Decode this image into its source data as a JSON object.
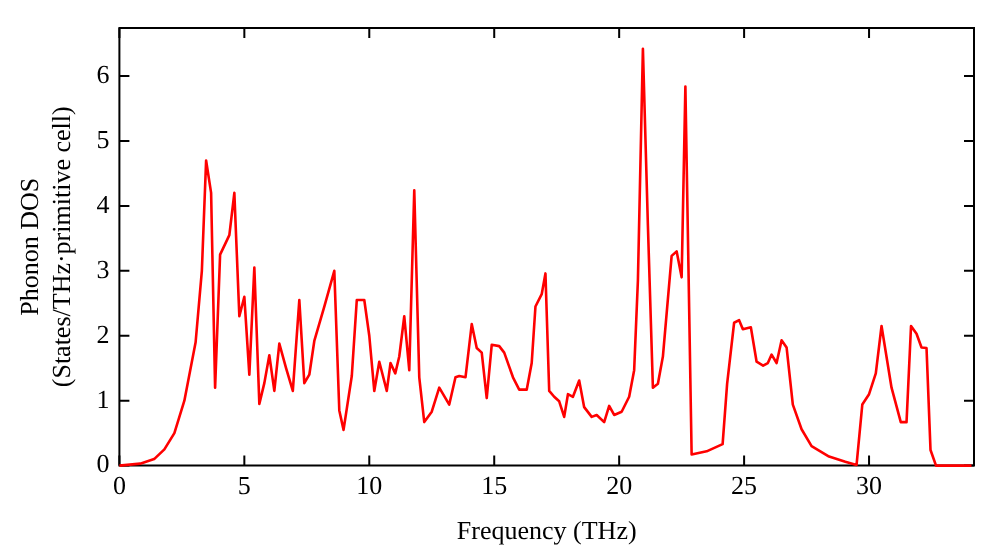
{
  "chart_data": {
    "type": "line",
    "xlabel": "Frequency (THz)",
    "ylabel": "Phonon DOS\n(States/THz·primitive cell)",
    "x": [
      0,
      0.83,
      1.39,
      1.8,
      2.2,
      2.6,
      3.05,
      3.3,
      3.47,
      3.67,
      3.83,
      4.03,
      4.4,
      4.6,
      4.8,
      5.0,
      5.2,
      5.4,
      5.6,
      5.8,
      6.0,
      6.2,
      6.4,
      6.67,
      6.94,
      7.2,
      7.4,
      7.6,
      7.8,
      8.2,
      8.6,
      8.8,
      8.97,
      9.3,
      9.5,
      9.8,
      10.0,
      10.2,
      10.4,
      10.7,
      10.85,
      11.04,
      11.2,
      11.4,
      11.6,
      11.8,
      12.0,
      12.2,
      12.5,
      12.8,
      13.2,
      13.45,
      13.6,
      13.85,
      14.1,
      14.3,
      14.5,
      14.7,
      14.9,
      15.2,
      15.4,
      15.75,
      16.0,
      16.3,
      16.5,
      16.65,
      16.9,
      17.05,
      17.2,
      17.4,
      17.6,
      17.8,
      17.95,
      18.15,
      18.4,
      18.6,
      18.9,
      19.1,
      19.4,
      19.6,
      19.8,
      20.1,
      20.4,
      20.6,
      20.75,
      20.95,
      21.15,
      21.35,
      21.55,
      21.75,
      22.1,
      22.3,
      22.5,
      22.65,
      22.9,
      23.5,
      24.14,
      24.32,
      24.6,
      24.8,
      24.95,
      25.27,
      25.5,
      25.76,
      25.95,
      26.1,
      26.3,
      26.5,
      26.7,
      26.95,
      27.3,
      27.7,
      28.4,
      29.05,
      29.5,
      29.73,
      30.0,
      30.27,
      30.5,
      30.9,
      31.27,
      31.5,
      31.68,
      31.9,
      32.1,
      32.3,
      32.46,
      32.68,
      34.1
    ],
    "series": [
      {
        "color": "#ff0000",
        "values": [
          0,
          0.03,
          0.1,
          0.25,
          0.5,
          1.0,
          1.9,
          3.0,
          4.7,
          4.2,
          1.2,
          3.25,
          3.55,
          4.2,
          2.3,
          2.6,
          1.4,
          3.05,
          0.95,
          1.27,
          1.7,
          1.15,
          1.88,
          1.5,
          1.15,
          2.55,
          1.27,
          1.4,
          1.92,
          2.45,
          3.0,
          0.85,
          0.55,
          1.38,
          2.55,
          2.55,
          2.0,
          1.15,
          1.6,
          1.15,
          1.58,
          1.42,
          1.68,
          2.3,
          1.47,
          4.24,
          1.36,
          0.67,
          0.83,
          1.2,
          0.94,
          1.36,
          1.38,
          1.36,
          2.18,
          1.81,
          1.74,
          1.04,
          1.86,
          1.84,
          1.74,
          1.36,
          1.17,
          1.17,
          1.58,
          2.45,
          2.64,
          2.96,
          1.15,
          1.06,
          0.99,
          0.75,
          1.1,
          1.06,
          1.31,
          0.9,
          0.75,
          0.78,
          0.67,
          0.92,
          0.78,
          0.83,
          1.06,
          1.47,
          2.85,
          6.42,
          3.7,
          1.2,
          1.26,
          1.68,
          3.23,
          3.3,
          2.9,
          5.84,
          0.17,
          0.22,
          0.33,
          1.26,
          2.2,
          2.24,
          2.1,
          2.13,
          1.6,
          1.54,
          1.58,
          1.71,
          1.58,
          1.93,
          1.82,
          0.94,
          0.56,
          0.3,
          0.14,
          0.06,
          0.01,
          0.94,
          1.1,
          1.42,
          2.15,
          1.2,
          0.67,
          0.67,
          2.15,
          2.03,
          1.82,
          1.81,
          0.24,
          0,
          0
        ]
      }
    ],
    "xlim": [
      0,
      34.2
    ],
    "ylim": [
      0,
      6.74
    ],
    "xticks": [
      0,
      5,
      10,
      15,
      20,
      25,
      30
    ],
    "yticks": [
      0,
      1,
      2,
      3,
      4,
      5,
      6
    ],
    "grid": false,
    "legend": false,
    "marker": "none",
    "line_style": "solid"
  }
}
